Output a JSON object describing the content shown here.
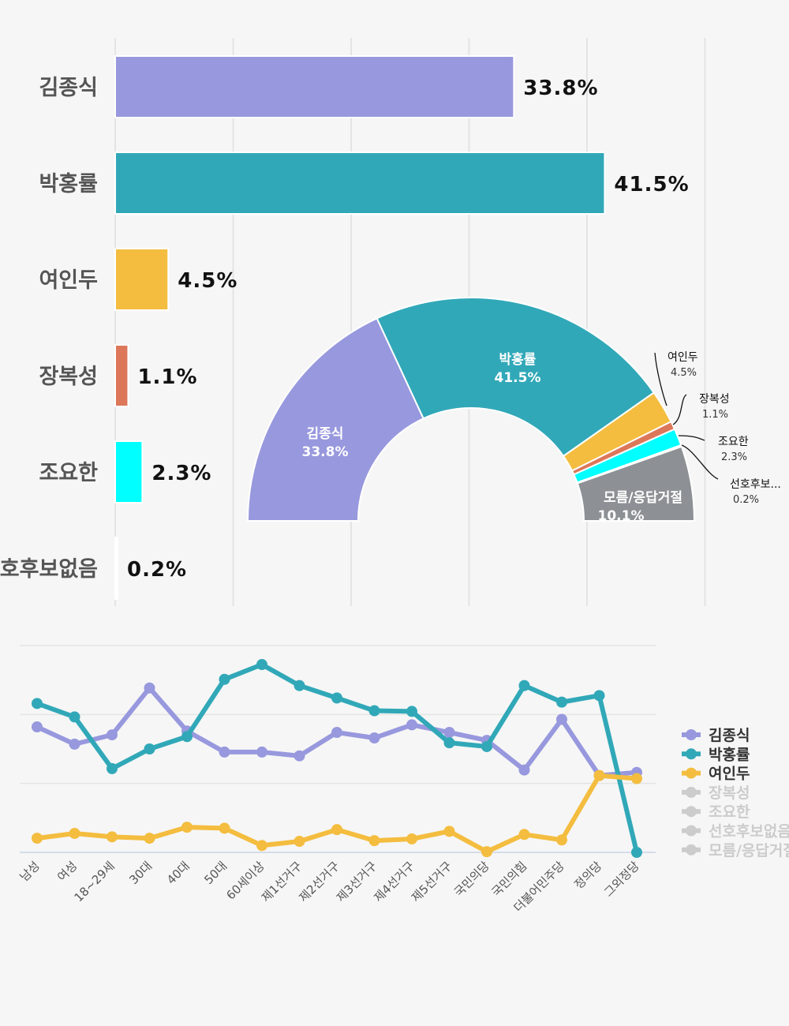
{
  "colors": {
    "김종식": "#9898de",
    "박홍률": "#31a8b8",
    "여인두": "#f4bd3f",
    "장복성": "#dc775a",
    "조요한": "#00ffff",
    "선호후보없음": "#ffffff",
    "모름/응답거절": "#8d9195",
    "legend_hidden": "#cccccc",
    "grid": "#e4e4e4"
  },
  "chart_data": [
    {
      "type": "bar",
      "orientation": "horizontal",
      "categories": [
        "김종식",
        "박홍률",
        "여인두",
        "장복성",
        "조요한",
        "선호후보없음"
      ],
      "values": [
        33.8,
        41.5,
        4.5,
        1.1,
        2.3,
        0.2
      ],
      "labels": [
        "33.8%",
        "41.5%",
        "4.5%",
        "1.1%",
        "2.3%",
        "0.2%"
      ],
      "xlim": [
        0,
        50
      ],
      "grid": true
    },
    {
      "type": "pie",
      "style": "half-donut",
      "categories": [
        "김종식",
        "박홍률",
        "여인두",
        "장복성",
        "조요한",
        "선호후보...",
        "모름/응답거절"
      ],
      "values": [
        33.8,
        41.5,
        4.5,
        1.1,
        2.3,
        0.2,
        10.1
      ],
      "labels": [
        "33.8%",
        "41.5%",
        "4.5%",
        "1.1%",
        "2.3%",
        "0.2%",
        "10.1%"
      ]
    },
    {
      "type": "line",
      "categories": [
        "남성",
        "여성",
        "18~29세",
        "30대",
        "40대",
        "50대",
        "60세이상",
        "제1선거구",
        "제2선거구",
        "제3선거구",
        "제4선거구",
        "제5선거구",
        "국민의당",
        "국민의힘",
        "더불어민주당",
        "정의당",
        "그외정당"
      ],
      "ylim": [
        0,
        60
      ],
      "grid": true,
      "legend_position": "right",
      "series": [
        {
          "name": "김종식",
          "visible": true,
          "values": [
            36.4,
            31.4,
            34.1,
            47.7,
            35.2,
            29.1,
            29.1,
            28.0,
            34.8,
            33.2,
            37.0,
            34.8,
            32.5,
            23.9,
            38.6,
            22.3,
            23.2
          ]
        },
        {
          "name": "박홍률",
          "visible": true,
          "values": [
            43.2,
            39.3,
            24.3,
            30.0,
            33.6,
            50.2,
            54.5,
            48.4,
            44.8,
            41.1,
            40.9,
            31.8,
            30.7,
            48.4,
            43.6,
            45.5,
            0
          ]
        },
        {
          "name": "여인두",
          "visible": true,
          "values": [
            4.1,
            5.5,
            4.5,
            4.1,
            7.3,
            7.0,
            2.0,
            3.2,
            6.6,
            3.4,
            3.9,
            6.1,
            0.2,
            5.2,
            3.6,
            22.3,
            21.4
          ]
        },
        {
          "name": "장복성",
          "visible": false
        },
        {
          "name": "조요한",
          "visible": false
        },
        {
          "name": "선호후보없음",
          "visible": false
        },
        {
          "name": "모름/응답거절",
          "visible": false
        }
      ]
    }
  ]
}
